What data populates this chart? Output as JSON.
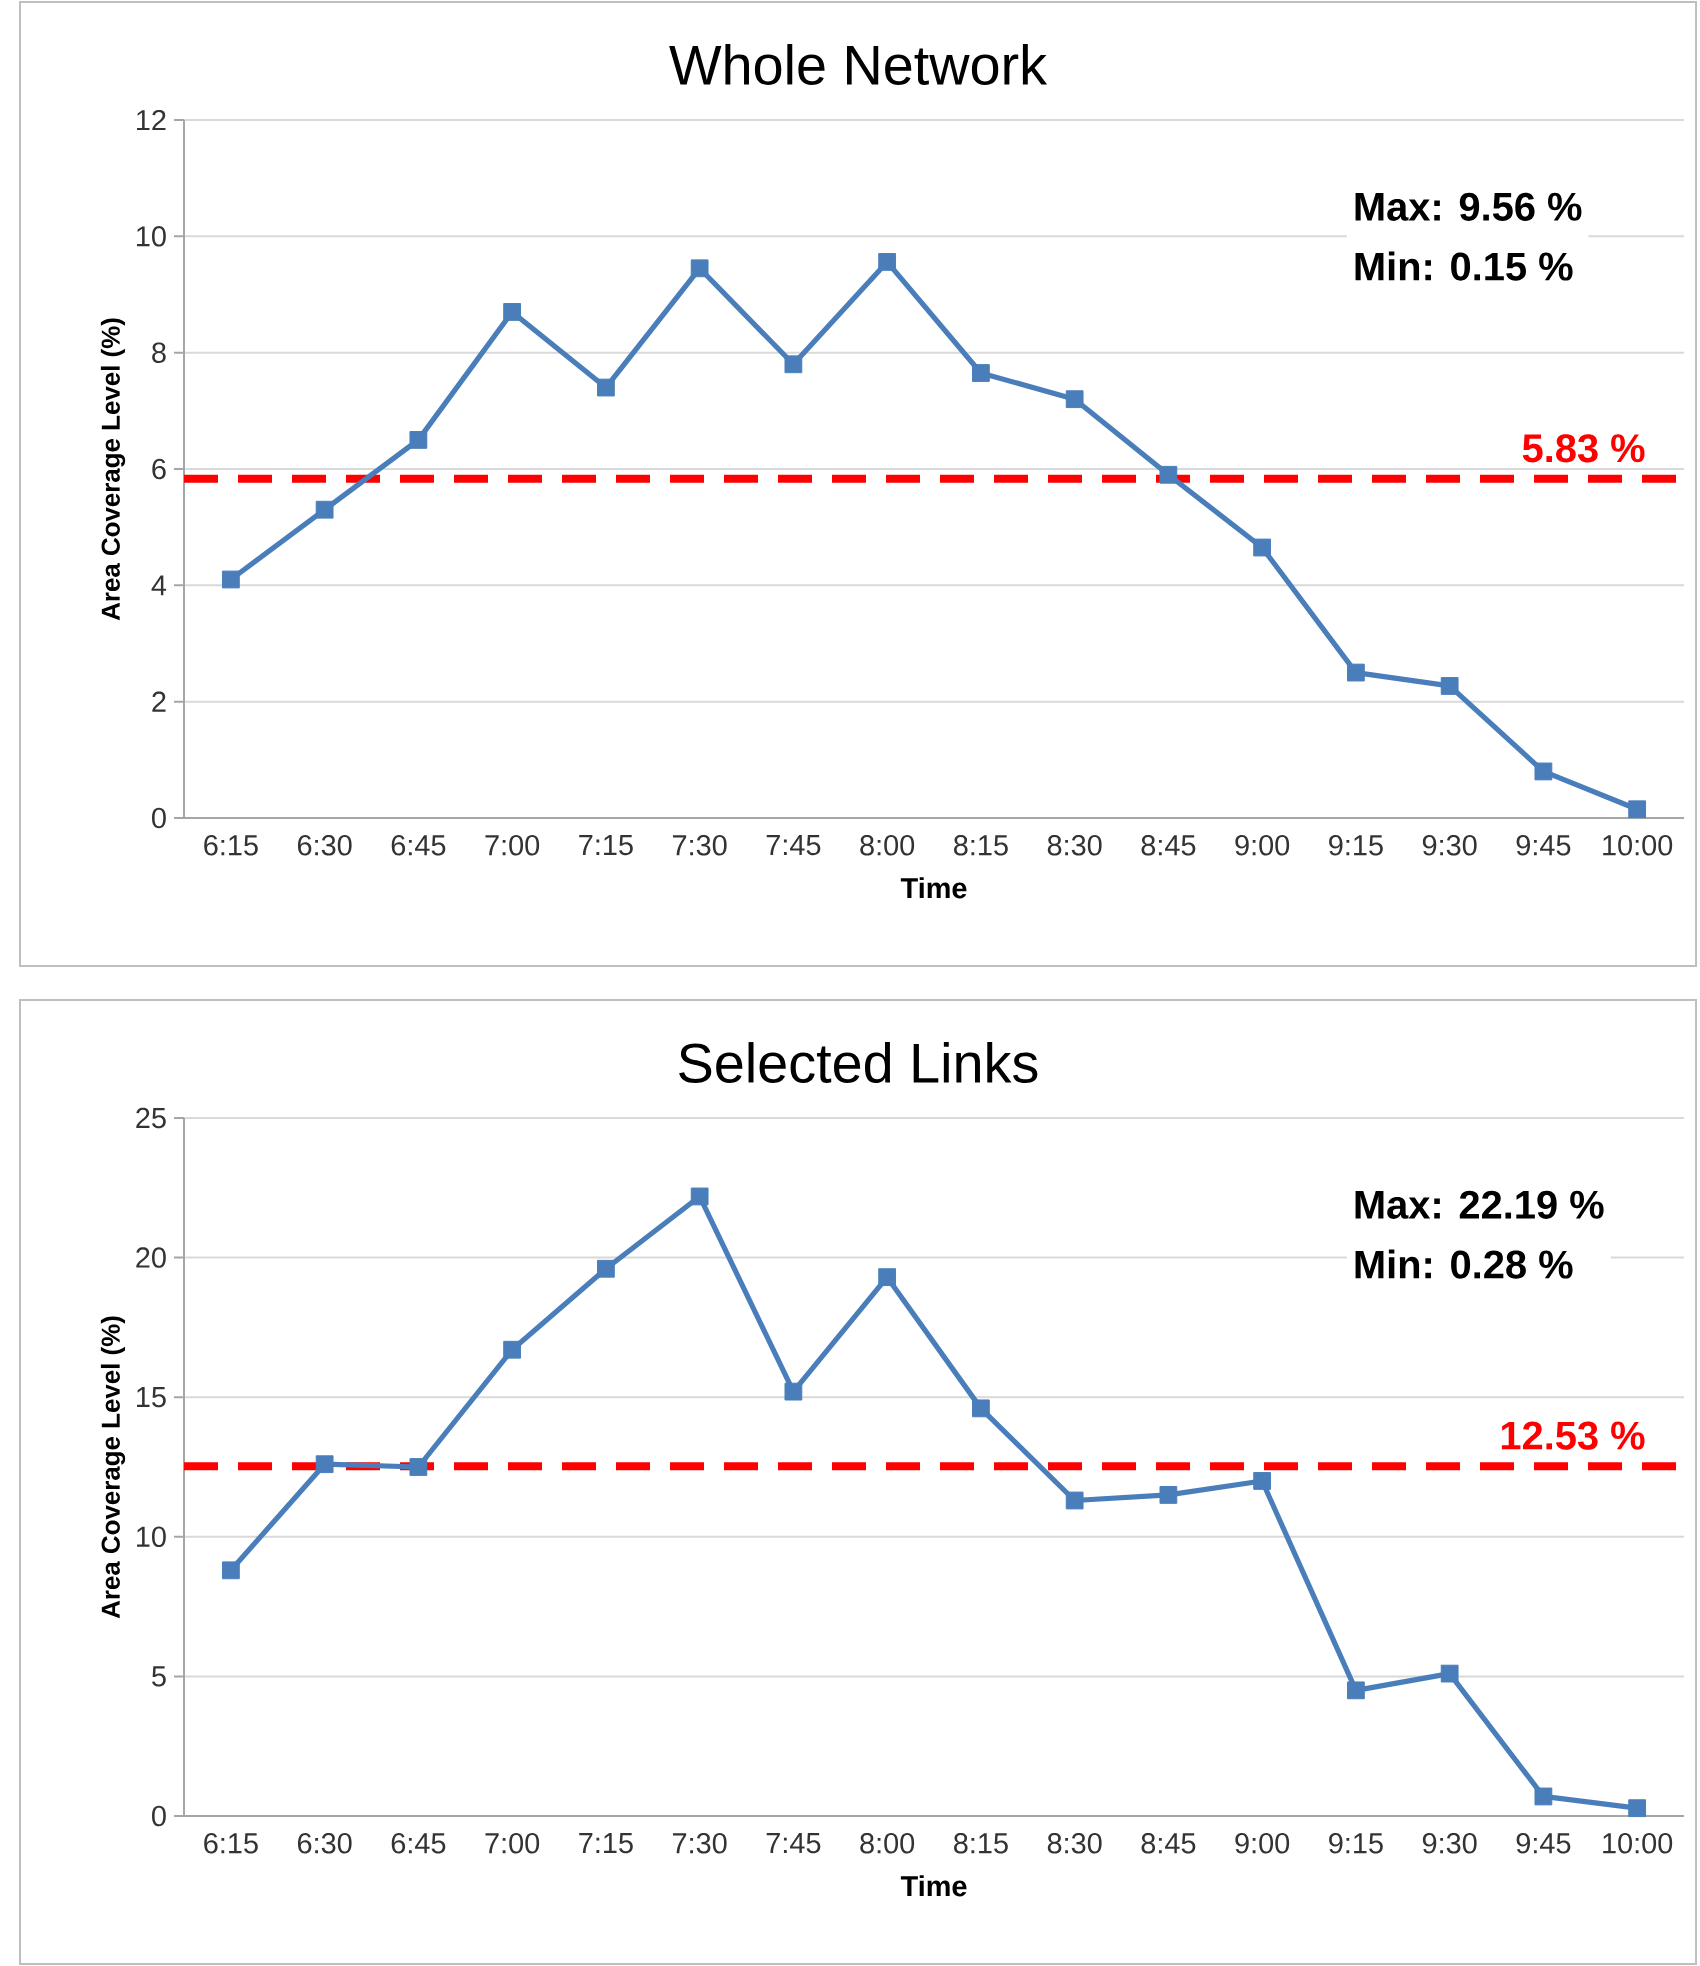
{
  "chart_data": [
    {
      "type": "line",
      "title": "Whole Network",
      "xlabel": "Time",
      "ylabel": "Area Coverage Level (%)",
      "categories": [
        "6:15",
        "6:30",
        "6:45",
        "7:00",
        "7:15",
        "7:30",
        "7:45",
        "8:00",
        "8:15",
        "8:30",
        "8:45",
        "9:00",
        "9:15",
        "9:30",
        "9:45",
        "10:00"
      ],
      "series": [
        {
          "color": "#4a7ebb",
          "values": [
            4.1,
            5.3,
            6.5,
            8.7,
            7.4,
            9.45,
            7.8,
            9.56,
            7.65,
            7.2,
            5.9,
            4.65,
            2.5,
            2.27,
            0.8,
            0.15
          ]
        }
      ],
      "ylim": [
        0,
        12
      ],
      "yticks": [
        0,
        2,
        4,
        6,
        8,
        10,
        12
      ],
      "grid": "y",
      "marker": "square",
      "ref_lines": [
        {
          "axis": "y",
          "value": 5.83,
          "label": "5.83 %",
          "color": "#ff0000",
          "line_style": "dashed"
        }
      ],
      "annotations": [
        "Max: 9.56 %",
        "Min: 0.15 %"
      ]
    },
    {
      "type": "line",
      "title": "Selected Links",
      "xlabel": "Time",
      "ylabel": "Area Coverage Level (%)",
      "categories": [
        "6:15",
        "6:30",
        "6:45",
        "7:00",
        "7:15",
        "7:30",
        "7:45",
        "8:00",
        "8:15",
        "8:30",
        "8:45",
        "9:00",
        "9:15",
        "9:30",
        "9:45",
        "10:00"
      ],
      "series": [
        {
          "color": "#4a7ebb",
          "values": [
            8.8,
            12.6,
            12.5,
            16.7,
            19.6,
            22.19,
            15.2,
            19.3,
            14.6,
            11.3,
            11.5,
            12.0,
            4.5,
            5.1,
            0.7,
            0.28
          ]
        }
      ],
      "ylim": [
        0,
        25
      ],
      "yticks": [
        0,
        5,
        10,
        15,
        20,
        25
      ],
      "grid": "y",
      "marker": "square",
      "ref_lines": [
        {
          "axis": "y",
          "value": 12.53,
          "label": "12.53 %",
          "color": "#ff0000",
          "line_style": "dashed"
        }
      ],
      "annotations": [
        "Max: 22.19 %",
        "Min: 0.28 %"
      ]
    }
  ]
}
